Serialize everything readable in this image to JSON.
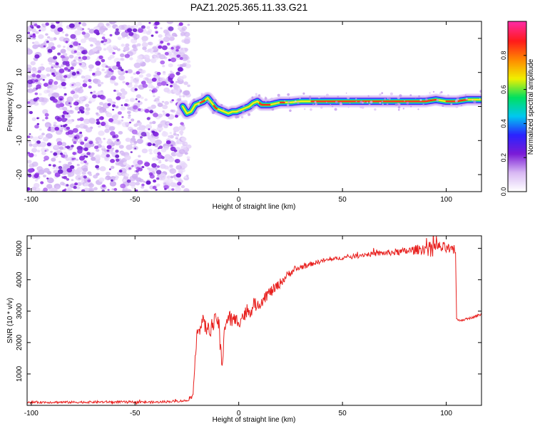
{
  "title": "PAZ1.2025.365.11.33.G21",
  "chart_data": [
    {
      "type": "heatmap",
      "title": "PAZ1.2025.365.11.33.G21",
      "xlabel": "Height of straight line (km)",
      "ylabel": "Frequency (Hz)",
      "xlim": [
        -102,
        117
      ],
      "ylim": [
        -25,
        25
      ],
      "x_ticks": [
        -100,
        -50,
        0,
        50,
        100
      ],
      "y_ticks": [
        -20,
        -10,
        0,
        10,
        20
      ],
      "colorbar": {
        "label": "Normalized spectral amplitude",
        "range": [
          0,
          1
        ],
        "ticks": [
          0.0,
          0.2,
          0.4,
          0.6,
          0.8
        ],
        "colors": [
          "#ffffff",
          "#d8b8f4",
          "#7a1bd6",
          "#2a22ff",
          "#00c8f0",
          "#00e060",
          "#f0f000",
          "#ff8a00",
          "#ff1a1a",
          "#ff2aa0"
        ]
      },
      "noise_region_x": [
        -102,
        -27
      ],
      "ridge": {
        "x": [
          -27,
          -25,
          -23,
          -21,
          -19,
          -17,
          -15,
          -13,
          -11,
          -9,
          -7,
          -5,
          -3,
          -1,
          1,
          3,
          5,
          7,
          9,
          11,
          15,
          20,
          25,
          30,
          40,
          50,
          60,
          70,
          80,
          85,
          90,
          95,
          100,
          105,
          110,
          117
        ],
        "y": [
          0,
          -2,
          -1.5,
          0.5,
          1,
          1.5,
          2.5,
          1,
          -0.5,
          -1,
          -1.5,
          -2,
          -1.5,
          -1.5,
          -1,
          -0.5,
          0,
          1,
          1.5,
          0.5,
          0.5,
          1.2,
          1.2,
          1.5,
          1.5,
          1.5,
          1.5,
          1.5,
          1.5,
          1.5,
          1.5,
          2,
          1.5,
          1.5,
          2,
          2
        ]
      }
    },
    {
      "type": "line",
      "xlabel": "Height of straight line (km)",
      "ylabel": "SNR (10 * v/v)",
      "xlim": [
        -102,
        117
      ],
      "ylim": [
        0,
        5400
      ],
      "x_ticks": [
        -100,
        -50,
        0,
        50,
        100
      ],
      "y_ticks": [
        1000,
        2000,
        3000,
        4000,
        5000
      ],
      "color": "#e8201e",
      "series": [
        {
          "name": "SNR",
          "x": [
            -102,
            -80,
            -60,
            -40,
            -25,
            -22,
            -21,
            -20,
            -19,
            -18,
            -15,
            -12,
            -10,
            -9,
            -8,
            -7,
            -5,
            -3,
            0,
            3,
            5,
            8,
            10,
            13,
            15,
            18,
            20,
            25,
            30,
            35,
            40,
            50,
            60,
            70,
            80,
            90,
            95,
            100,
            104.5,
            105,
            106,
            110,
            117
          ],
          "values": [
            100,
            100,
            110,
            100,
            150,
            300,
            1500,
            2600,
            2300,
            2700,
            2400,
            2600,
            2800,
            2000,
            1100,
            2500,
            2800,
            2700,
            2700,
            2900,
            3000,
            3200,
            3250,
            3500,
            3600,
            3750,
            3900,
            4250,
            4400,
            4500,
            4600,
            4700,
            4800,
            4850,
            4900,
            5000,
            5050,
            5000,
            4900,
            2750,
            2700,
            2750,
            2900
          ],
          "noise_amp": [
            60,
            60,
            60,
            60,
            60,
            80,
            400,
            400,
            500,
            450,
            400,
            450,
            450,
            700,
            350,
            500,
            450,
            450,
            400,
            400,
            400,
            350,
            350,
            350,
            300,
            300,
            250,
            200,
            150,
            120,
            120,
            100,
            120,
            150,
            200,
            300,
            350,
            300,
            200,
            60,
            60,
            60,
            60
          ]
        }
      ]
    }
  ]
}
